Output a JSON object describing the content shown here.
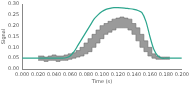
{
  "chart_data": {
    "type": "line",
    "x_label": "Time (s)",
    "y_label": "Signal",
    "x": [
      0,
      0.005,
      0.01,
      0.015,
      0.02,
      0.025,
      0.03,
      0.035,
      0.04,
      0.045,
      0.05,
      0.055,
      0.06,
      0.065,
      0.07,
      0.075,
      0.08,
      0.085,
      0.09,
      0.095,
      0.1,
      0.105,
      0.11,
      0.115,
      0.12,
      0.125,
      0.13,
      0.135,
      0.14,
      0.145,
      0.15,
      0.155,
      0.16,
      0.165,
      0.17,
      0.175,
      0.18,
      0.185,
      0.19,
      0.195,
      0.2
    ],
    "series": [
      {
        "type": "line",
        "color": "#2ca58d",
        "values": [
          0.05,
          0.05,
          0.05,
          0.05,
          0.05,
          0.05,
          0.05,
          0.05,
          0.05,
          0.05,
          0.05,
          0.052,
          0.06,
          0.08,
          0.11,
          0.14,
          0.17,
          0.2,
          0.23,
          0.25,
          0.265,
          0.275,
          0.28,
          0.283,
          0.283,
          0.282,
          0.28,
          0.278,
          0.275,
          0.27,
          0.26,
          0.22,
          0.15,
          0.09,
          0.06,
          0.05,
          0.05,
          0.05,
          0.05,
          0.05,
          0.05
        ]
      },
      {
        "type": "range",
        "color": "#9a9a9a",
        "lower": [
          null,
          null,
          null,
          null,
          0.04,
          0.04,
          0.035,
          0.04,
          0.04,
          0.035,
          0.04,
          0.04,
          0.045,
          0.05,
          0.055,
          0.06,
          0.07,
          0.08,
          0.1,
          0.12,
          0.14,
          0.16,
          0.17,
          0.18,
          0.19,
          0.19,
          0.19,
          0.18,
          0.16,
          0.13,
          0.1,
          0.08,
          0.06,
          0.05,
          0.045,
          0.045,
          0.045,
          0.045,
          null,
          null,
          null
        ],
        "upper": [
          null,
          null,
          null,
          null,
          0.06,
          0.06,
          0.055,
          0.06,
          0.065,
          0.06,
          0.06,
          0.065,
          0.07,
          0.075,
          0.085,
          0.1,
          0.12,
          0.14,
          0.16,
          0.18,
          0.2,
          0.21,
          0.22,
          0.23,
          0.235,
          0.24,
          0.235,
          0.23,
          0.21,
          0.19,
          0.16,
          0.13,
          0.1,
          0.07,
          0.06,
          0.055,
          0.055,
          0.055,
          null,
          null,
          null
        ]
      }
    ],
    "xlim": [
      0,
      0.2
    ],
    "xticks": [
      {
        "value": 0,
        "label": "0.000"
      },
      {
        "value": 0.02,
        "label": "0.020"
      },
      {
        "value": 0.04,
        "label": "0.040"
      },
      {
        "value": 0.06,
        "label": "0.060"
      },
      {
        "value": 0.08,
        "label": "0.080"
      },
      {
        "value": 0.1,
        "label": "0.100"
      },
      {
        "value": 0.12,
        "label": "0.120"
      },
      {
        "value": 0.14,
        "label": "0.140"
      },
      {
        "value": 0.16,
        "label": "0.160"
      },
      {
        "value": 0.18,
        "label": "0.180"
      },
      {
        "value": 0.2,
        "label": "0.200"
      }
    ],
    "ylim": [
      0,
      0.3
    ],
    "yticks": [
      {
        "value": 0,
        "label": "0.00"
      },
      {
        "value": 0.05,
        "label": "0.05"
      },
      {
        "value": 0.1,
        "label": "0.10"
      },
      {
        "value": 0.15,
        "label": "0.15"
      },
      {
        "value": 0.2,
        "label": "0.20"
      },
      {
        "value": 0.25,
        "label": "0.25"
      },
      {
        "value": 0.3,
        "label": "0.30"
      }
    ],
    "grid": false
  }
}
